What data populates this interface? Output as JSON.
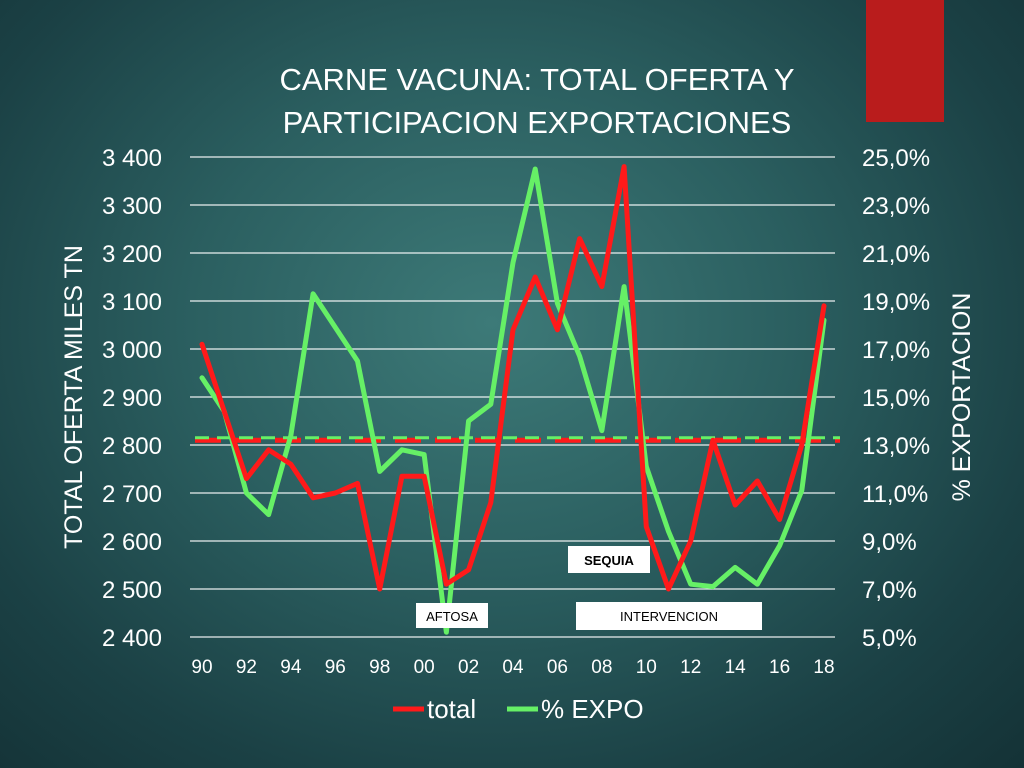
{
  "colors": {
    "total": "#ff1a1a",
    "expo": "#66f066",
    "background": "#2b5f60",
    "gridline": "#ffffff",
    "accent_tab": "#b91c1c"
  },
  "chart_data": {
    "type": "line",
    "title_lines": [
      "CARNE VACUNA: TOTAL OFERTA Y",
      "PARTICIPACION EXPORTACIONES"
    ],
    "ylabel": "TOTAL OFERTA MILES TN",
    "y2label": "% EXPORTACION",
    "ylim": [
      2400,
      3400
    ],
    "y2lim": [
      5.0,
      25.0
    ],
    "yticks": [
      "3 400",
      "3 300",
      "3 200",
      "3 100",
      "3 000",
      "2 900",
      "2 800",
      "2 700",
      "2 600",
      "2 500",
      "2 400"
    ],
    "y2ticks": [
      "25,0%",
      "23,0%",
      "21,0%",
      "19,0%",
      "17,0%",
      "15,0%",
      "13,0%",
      "11,0%",
      "9,0%",
      "7,0%",
      "5,0%"
    ],
    "xtick_labels": [
      "90",
      "92",
      "94",
      "96",
      "98",
      "00",
      "02",
      "04",
      "06",
      "08",
      "10",
      "12",
      "14",
      "16",
      "18"
    ],
    "x": [
      1990,
      1991,
      1992,
      1993,
      1994,
      1995,
      1996,
      1997,
      1998,
      1999,
      2000,
      2001,
      2002,
      2003,
      2004,
      2005,
      2006,
      2007,
      2008,
      2009,
      2010,
      2011,
      2012,
      2013,
      2014,
      2015,
      2016,
      2017,
      2018
    ],
    "series": [
      {
        "name": "total",
        "axis": "left",
        "values": [
          3010,
          2870,
          2730,
          2790,
          2760,
          2690,
          2700,
          2720,
          2500,
          2735,
          2735,
          2510,
          2540,
          2680,
          3040,
          3150,
          3040,
          3230,
          3130,
          3380,
          2630,
          2500,
          2600,
          2810,
          2675,
          2725,
          2645,
          2800,
          3090
        ],
        "mean_line": 2810
      },
      {
        "name": "% EXPO",
        "axis": "right",
        "values": [
          15.8,
          14.4,
          11.0,
          10.1,
          13.4,
          19.3,
          17.9,
          16.5,
          11.9,
          12.8,
          12.6,
          5.2,
          14.0,
          14.7,
          20.6,
          24.5,
          18.9,
          16.7,
          13.6,
          19.6,
          12.1,
          9.4,
          7.2,
          7.1,
          7.9,
          7.2,
          8.8,
          11.1,
          18.2
        ],
        "mean_line": 13.3
      }
    ],
    "annotations": [
      {
        "label": "SEQUIA",
        "bold": true
      },
      {
        "label": "AFTOSA",
        "bold": false
      },
      {
        "label": "INTERVENCION",
        "bold": false
      }
    ],
    "legend": [
      "total",
      "% EXPO"
    ],
    "legend_position": "bottom",
    "grid": true
  }
}
